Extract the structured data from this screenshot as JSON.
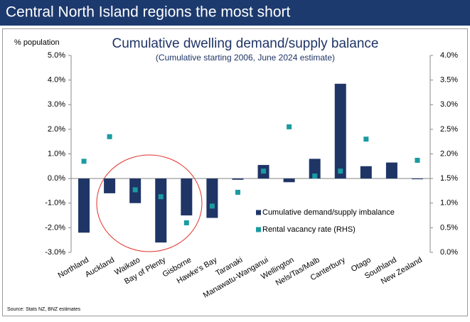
{
  "header": {
    "title": "Central North Island regions the most short"
  },
  "chart_data": {
    "type": "bar_marker",
    "title": "Cumulative dwelling demand/supply balance",
    "subtitle": "(Cumulative starting 2006, June 2024 estimate)",
    "ylabel": "% population",
    "source": "Source: Stats NZ, BNZ estimates",
    "categories": [
      "Northland",
      "Auckland",
      "Waikato",
      "Bay of Plenty",
      "Gisborne",
      "Hawke's Bay",
      "Taranaki",
      "Manawatu-Wanganui",
      "Wellington",
      "Nels/Tas/Malb",
      "Canterbury",
      "Otago",
      "Southland",
      "New Zealand"
    ],
    "series": [
      {
        "name": "Cumulative demand/supply imbalance",
        "color": "#1f3566",
        "kind": "bar",
        "values": [
          -2.2,
          -0.6,
          -1.0,
          -2.6,
          -1.5,
          -1.6,
          -0.05,
          0.55,
          -0.15,
          0.8,
          3.85,
          0.5,
          0.65,
          -0.03
        ]
      },
      {
        "name": "Rental vacancy rate (RHS)",
        "color": "#1a9ba1",
        "kind": "marker",
        "axis": "y2",
        "values": [
          1.85,
          2.35,
          1.27,
          1.13,
          0.6,
          0.94,
          1.22,
          1.65,
          2.55,
          1.55,
          1.65,
          2.3,
          null,
          1.87
        ]
      }
    ],
    "ylim": [
      -3,
      5
    ],
    "yticks": [
      {
        "value": 5,
        "label": "5.0%"
      },
      {
        "value": 4,
        "label": "4.0%"
      },
      {
        "value": 3,
        "label": "3.0%"
      },
      {
        "value": 2,
        "label": "2.0%"
      },
      {
        "value": 1,
        "label": "1.0%"
      },
      {
        "value": 0,
        "label": "0.0%"
      },
      {
        "value": -1,
        "label": "-1.0%"
      },
      {
        "value": -2,
        "label": "-2.0%"
      },
      {
        "value": -3,
        "label": "-3.0%"
      }
    ],
    "y2lim": [
      0,
      4
    ],
    "y2ticks": [
      {
        "value": 4,
        "label": "4.0%"
      },
      {
        "value": 3.5,
        "label": "3.5%"
      },
      {
        "value": 3,
        "label": "3.0%"
      },
      {
        "value": 2.5,
        "label": "2.5%"
      },
      {
        "value": 2,
        "label": "2.0%"
      },
      {
        "value": 1.5,
        "label": "1.5%"
      },
      {
        "value": 1,
        "label": "1.0%"
      },
      {
        "value": 0.5,
        "label": "0.5%"
      },
      {
        "value": 0,
        "label": "0.0%"
      }
    ]
  }
}
